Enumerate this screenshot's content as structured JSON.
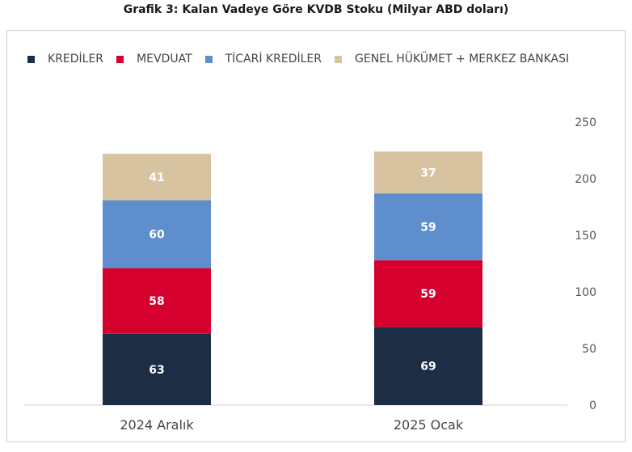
{
  "chart_data": {
    "type": "bar",
    "stacked": true,
    "title": "Grafik 3: Kalan Vadeye Göre KVDB Stoku (Milyar ABD doları)",
    "categories": [
      "2024 Aralık",
      "2025 Ocak"
    ],
    "series": [
      {
        "name": "KREDİLER",
        "values": [
          63,
          69
        ],
        "color": "#1c2d44"
      },
      {
        "name": "MEVDUAT",
        "values": [
          58,
          59
        ],
        "color": "#d6002e"
      },
      {
        "name": "TİCARİ KREDİLER",
        "values": [
          60,
          59
        ],
        "color": "#5f8ecc"
      },
      {
        "name": "GENEL HÜKÜMET + MERKEZ BANKASI",
        "values": [
          41,
          37
        ],
        "color": "#d8c3a0"
      }
    ],
    "ylim": [
      0,
      250
    ],
    "yticks": [
      0,
      50,
      100,
      150,
      200,
      250
    ],
    "y_axis_side": "right",
    "legend_position": "top",
    "grid": false
  }
}
